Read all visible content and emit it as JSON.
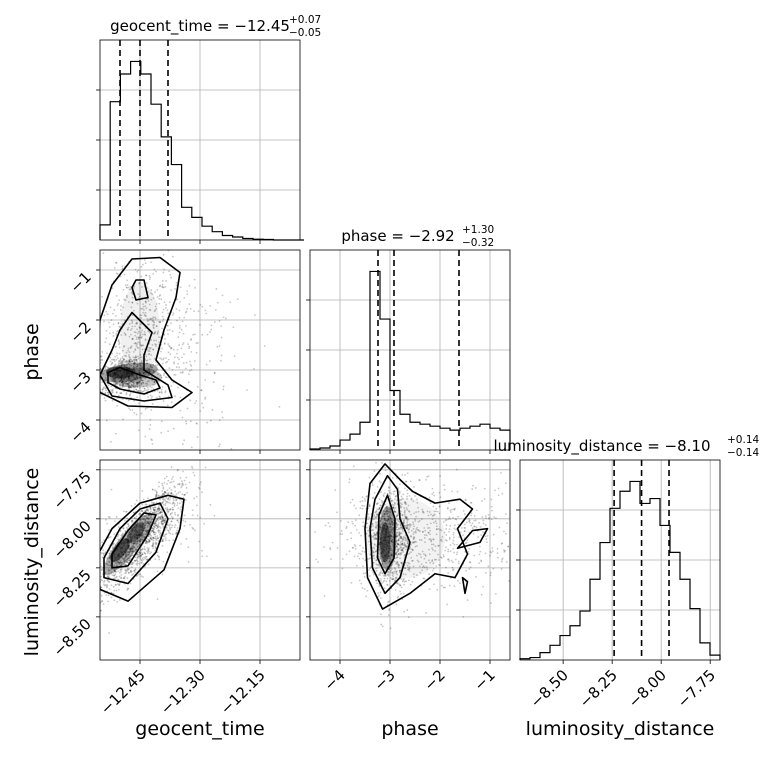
{
  "chart_data": {
    "type": "corner",
    "parameters": [
      "geocent_time",
      "phase",
      "luminosity_distance"
    ],
    "titles": [
      {
        "prefix": "geocent_time = ",
        "value": "−12.45",
        "plus": "+0.07",
        "minus": "−0.05"
      },
      {
        "prefix": "phase = ",
        "value": "−2.92",
        "plus": "+1.30",
        "minus": "−0.32"
      },
      {
        "prefix": "luminosity_distance = ",
        "value": "−8.10",
        "plus": "+0.14",
        "minus": "−0.14"
      }
    ],
    "axes": {
      "geocent_time": {
        "range": [
          -12.55,
          -12.05
        ],
        "ticks": [
          -12.45,
          -12.3,
          -12.15
        ],
        "tick_labels": [
          "−12.45",
          "−12.30",
          "−12.15"
        ]
      },
      "phase": {
        "range": [
          -4.6,
          -0.6
        ],
        "ticks": [
          -4,
          -3,
          -2,
          -1
        ],
        "tick_labels": [
          "−4",
          "−3",
          "−2",
          "−1"
        ]
      },
      "luminosity_distance": {
        "range": [
          -8.72,
          -7.7
        ],
        "ticks": [
          -8.5,
          -8.25,
          -8.0,
          -7.75
        ],
        "tick_labels": [
          "−8.50",
          "−8.25",
          "−8.00",
          "−7.75"
        ]
      }
    },
    "quantiles": {
      "geocent_time": [
        -12.5,
        -12.45,
        -12.38
      ],
      "phase": [
        -3.24,
        -2.92,
        -1.62
      ],
      "luminosity_distance": [
        -8.24,
        -8.1,
        -7.96
      ]
    },
    "histograms": {
      "geocent_time": {
        "bins": [
          -12.55,
          -12.04
        ],
        "values": [
          0.06,
          0.55,
          0.66,
          0.71,
          0.66,
          0.54,
          0.41,
          0.3,
          0.13,
          0.09,
          0.055,
          0.033,
          0.018,
          0.012,
          0.006,
          0.003,
          0.002,
          0,
          0,
          0
        ]
      },
      "phase": {
        "bins": [
          -4.6,
          -0.6
        ],
        "values": [
          0.005,
          0.01,
          0.02,
          0.05,
          0.08,
          0.14,
          0.9,
          0.66,
          0.3,
          0.18,
          0.14,
          0.13,
          0.12,
          0.11,
          0.1,
          0.11,
          0.12,
          0.13,
          0.11,
          0.1
        ]
      },
      "luminosity_distance": {
        "bins": [
          -8.72,
          -7.7
        ],
        "values": [
          0.005,
          0.01,
          0.03,
          0.06,
          0.1,
          0.14,
          0.2,
          0.33,
          0.48,
          0.62,
          0.69,
          0.73,
          0.64,
          0.66,
          0.55,
          0.44,
          0.33,
          0.21,
          0.07,
          0.02
        ]
      }
    },
    "pairs": [
      {
        "x": "geocent_time",
        "y": "phase"
      },
      {
        "x": "geocent_time",
        "y": "luminosity_distance"
      },
      {
        "x": "phase",
        "y": "luminosity_distance"
      }
    ],
    "grid": true,
    "legend": "none"
  }
}
